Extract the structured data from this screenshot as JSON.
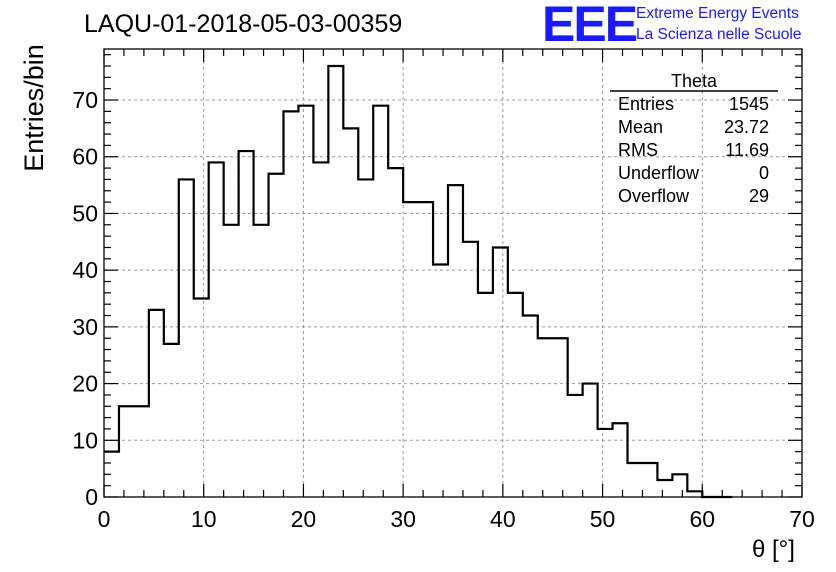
{
  "title": "LAQU-01-2018-05-03-00359",
  "logo": {
    "mark": "EEE",
    "line1": "Extreme Energy Events",
    "line2": "La Scienza nelle Scuole"
  },
  "stats": {
    "name": "Theta",
    "rows": [
      {
        "label": "Entries",
        "value": "1545"
      },
      {
        "label": "Mean",
        "value": "23.72"
      },
      {
        "label": "RMS",
        "value": "11.69"
      },
      {
        "label": "Underflow",
        "value": "0"
      },
      {
        "label": "Overflow",
        "value": "29"
      }
    ]
  },
  "colors": {
    "logo": "#1a1aff",
    "grid": "#999999",
    "line": "#000000"
  },
  "chart_data": {
    "type": "histogram",
    "title": "LAQU-01-2018-05-03-00359",
    "xlabel": "θ [°]",
    "ylabel": "Entries/bin",
    "xlim": [
      0,
      70
    ],
    "ylim": [
      0,
      79
    ],
    "grid": true,
    "xticks": [
      0,
      10,
      20,
      30,
      40,
      50,
      60,
      70
    ],
    "yticks": [
      0,
      10,
      20,
      30,
      40,
      50,
      60,
      70
    ],
    "bin_width": 1.5,
    "bin_start": 0,
    "values": [
      8,
      16,
      16,
      33,
      27,
      56,
      35,
      59,
      48,
      61,
      48,
      57,
      68,
      69,
      59,
      76,
      65,
      56,
      69,
      58,
      52,
      52,
      41,
      55,
      45,
      36,
      44,
      36,
      32,
      28,
      28,
      18,
      20,
      12,
      13,
      6,
      6,
      3,
      4,
      1,
      0,
      0
    ]
  }
}
